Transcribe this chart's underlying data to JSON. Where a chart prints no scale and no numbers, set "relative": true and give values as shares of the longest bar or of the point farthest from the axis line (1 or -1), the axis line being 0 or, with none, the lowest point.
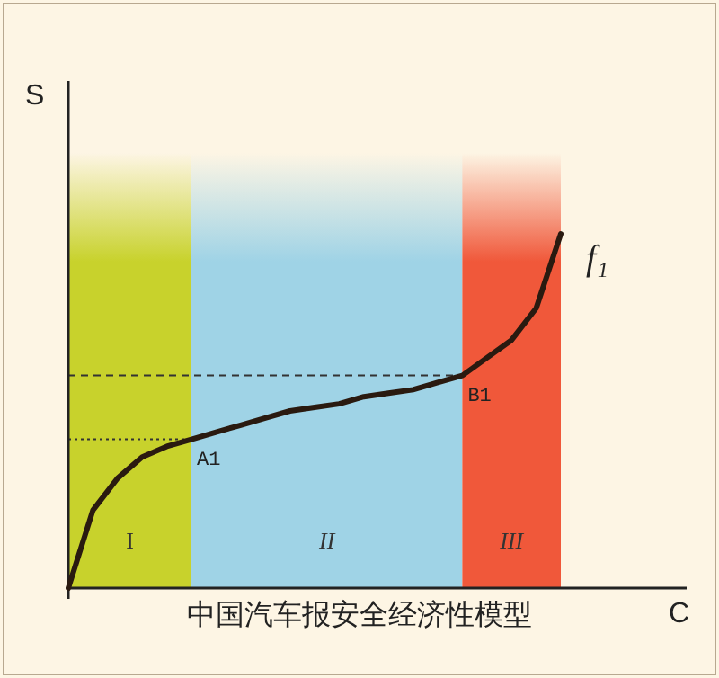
{
  "chart_data": {
    "type": "line",
    "relative": true,
    "xlabel": "C",
    "ylabel": "S",
    "legend": false,
    "grid": false,
    "marker": "none",
    "line_style": "solid",
    "categories": [
      null,
      null,
      null,
      null,
      null,
      null,
      null,
      null,
      null,
      null,
      null,
      null,
      null,
      null,
      null,
      null,
      null,
      null,
      null,
      null,
      null
    ],
    "series": [
      {
        "name": "f₁",
        "color": "#2a1a10",
        "values": [
          0,
          0.22,
          0.31,
          0.37,
          0.4,
          0.42,
          0.44,
          0.46,
          0.48,
          0.5,
          0.51,
          0.52,
          0.54,
          0.55,
          0.56,
          0.58,
          0.6,
          0.65,
          0.7,
          0.79,
          1
        ]
      }
    ],
    "ref_lines": [
      {
        "axis": "y",
        "value": 0.42,
        "line_style": "dotted"
      },
      {
        "axis": "y",
        "value": 0.6,
        "line_style": "dashed"
      }
    ],
    "annotations": [
      {
        "text": "A1",
        "y": 0.42
      },
      {
        "text": "B1",
        "y": 0.6
      },
      "I",
      "II",
      "III",
      "中国汽车报安全经济性模型"
    ]
  }
}
